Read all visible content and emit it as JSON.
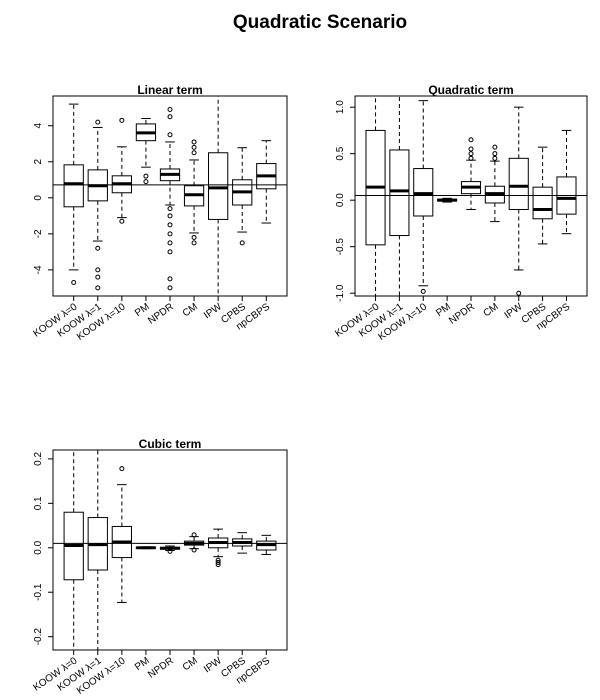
{
  "title": "Quadratic Scenario",
  "chart_data": [
    {
      "type": "box",
      "title": "Linear term",
      "categories": [
        "KOOW λ=0",
        "KOOW λ=1",
        "KOOW λ=10",
        "PM",
        "NPDR",
        "CM",
        "IPW",
        "CPBS",
        "npCBPS"
      ],
      "boxes": [
        {
          "low": -4,
          "q1": -0.5,
          "median": 0.78,
          "q3": 1.83,
          "high": 5.2,
          "outliers": [
            -4.7
          ]
        },
        {
          "low": -2.4,
          "q1": -0.17,
          "median": 0.67,
          "q3": 1.55,
          "high": 3.9,
          "outliers": [
            4.2,
            -2.8,
            -4,
            -4.4,
            -5
          ]
        },
        {
          "low": -1.1,
          "q1": 0.28,
          "median": 0.78,
          "q3": 1.22,
          "high": 2.83,
          "outliers": [
            4.3,
            -1.3
          ]
        },
        {
          "low": 1.7,
          "q1": 3.17,
          "median": 3.6,
          "q3": 4.1,
          "high": 4.4,
          "outliers": [
            0.9,
            1.2
          ]
        },
        {
          "low": -0.4,
          "q1": 0.95,
          "median": 1.3,
          "q3": 1.6,
          "high": 3.1,
          "outliers": [
            4.9,
            4.5,
            3.5,
            -0.6,
            -1,
            -1.5,
            -2,
            -2.5,
            -3,
            -4.5,
            -5
          ]
        },
        {
          "low": -1.95,
          "q1": -0.45,
          "median": 0.17,
          "q3": 0.67,
          "high": 2.1,
          "outliers": [
            3.1,
            2.8,
            2.5,
            -2.2,
            -2.5
          ]
        },
        {
          "low": -6,
          "q1": -1.2,
          "median": 0.55,
          "q3": 2.5,
          "high": 6,
          "outliers": []
        },
        {
          "low": -1.9,
          "q1": -0.4,
          "median": 0.33,
          "q3": 1.0,
          "high": 2.78,
          "outliers": [
            -2.5
          ]
        },
        {
          "low": -1.4,
          "q1": 0.5,
          "median": 1.22,
          "q3": 1.9,
          "high": 3.17,
          "outliers": []
        }
      ],
      "reference_line": 0.72,
      "ylim": [
        -5.45,
        5.65
      ],
      "yticks": [
        -4,
        -2,
        0,
        2,
        4
      ]
    },
    {
      "type": "box",
      "title": "Quadratic term",
      "categories": [
        "KOOW λ=0",
        "KOOW λ=1",
        "KOOW λ=10",
        "PM",
        "NPDR",
        "CM",
        "IPW",
        "CPBS",
        "npCBPS"
      ],
      "boxes": [
        {
          "low": -1.2,
          "q1": -0.48,
          "median": 0.14,
          "q3": 0.75,
          "high": 1.2,
          "outliers": []
        },
        {
          "low": -1.2,
          "q1": -0.38,
          "median": 0.1,
          "q3": 0.54,
          "high": 1.2,
          "outliers": []
        },
        {
          "low": -0.92,
          "q1": -0.17,
          "median": 0.07,
          "q3": 0.34,
          "high": 1.07,
          "outliers": [
            -0.98
          ]
        },
        {
          "low": -0.02,
          "q1": -0.01,
          "median": 0,
          "q3": 0.01,
          "high": 0.02,
          "outliers": []
        },
        {
          "low": -0.1,
          "q1": 0.07,
          "median": 0.14,
          "q3": 0.2,
          "high": 0.43,
          "outliers": [
            0.65,
            0.55,
            0.5,
            0.45
          ]
        },
        {
          "low": -0.23,
          "q1": -0.03,
          "median": 0.07,
          "q3": 0.15,
          "high": 0.42,
          "outliers": [
            0.57,
            0.5,
            0.45
          ]
        },
        {
          "low": -0.75,
          "q1": -0.1,
          "median": 0.15,
          "q3": 0.45,
          "high": 1.0,
          "outliers": [
            -1.0
          ]
        },
        {
          "low": -0.47,
          "q1": -0.2,
          "median": -0.1,
          "q3": 0.14,
          "high": 0.57,
          "outliers": []
        },
        {
          "low": -0.36,
          "q1": -0.15,
          "median": 0.02,
          "q3": 0.25,
          "high": 0.75,
          "outliers": []
        }
      ],
      "reference_line": 0.05,
      "ylim": [
        -1.03,
        1.12
      ],
      "yticks": [
        {
          "value": -1,
          "label": "-1.0"
        },
        -0.5,
        {
          "value": 0,
          "label": "0.0"
        },
        0.5,
        {
          "value": 1,
          "label": "1.0"
        }
      ]
    },
    {
      "type": "box",
      "title": "Cubic term",
      "categories": [
        "KOOW λ=0",
        "KOOW λ=1",
        "KOOW λ=10",
        "PM",
        "NPDR",
        "CM",
        "IPW",
        "CPBS",
        "npCBPS"
      ],
      "boxes": [
        {
          "low": -0.3,
          "q1": -0.072,
          "median": 0.005,
          "q3": 0.08,
          "high": 0.3,
          "outliers": []
        },
        {
          "low": -0.3,
          "q1": -0.05,
          "median": 0.007,
          "q3": 0.068,
          "high": 0.3,
          "outliers": []
        },
        {
          "low": -0.123,
          "q1": -0.022,
          "median": 0.013,
          "q3": 0.048,
          "high": 0.142,
          "outliers": [
            0.178
          ]
        },
        {
          "low": -0.002,
          "q1": -0.001,
          "median": 0,
          "q3": 0.001,
          "high": 0.002,
          "outliers": []
        },
        {
          "low": -0.006,
          "q1": -0.003,
          "median": -0.001,
          "q3": 0.001,
          "high": 0.004,
          "outliers": [
            -0.008
          ]
        },
        {
          "low": -0.002,
          "q1": 0.006,
          "median": 0.01,
          "q3": 0.015,
          "high": 0.025,
          "outliers": [
            0.029,
            -0.005
          ]
        },
        {
          "low": -0.02,
          "q1": 0.0,
          "median": 0.012,
          "q3": 0.022,
          "high": 0.042,
          "outliers": [
            -0.028,
            -0.033,
            -0.038
          ]
        },
        {
          "low": -0.012,
          "q1": 0.004,
          "median": 0.012,
          "q3": 0.02,
          "high": 0.034,
          "outliers": []
        },
        {
          "low": -0.015,
          "q1": -0.005,
          "median": 0.007,
          "q3": 0.015,
          "high": 0.028,
          "outliers": []
        }
      ],
      "reference_line": 0.01,
      "ylim": [
        -0.23,
        0.22
      ],
      "yticks": [
        -0.2,
        -0.1,
        {
          "value": 0,
          "label": "0.0"
        },
        0.1,
        0.2
      ]
    }
  ]
}
